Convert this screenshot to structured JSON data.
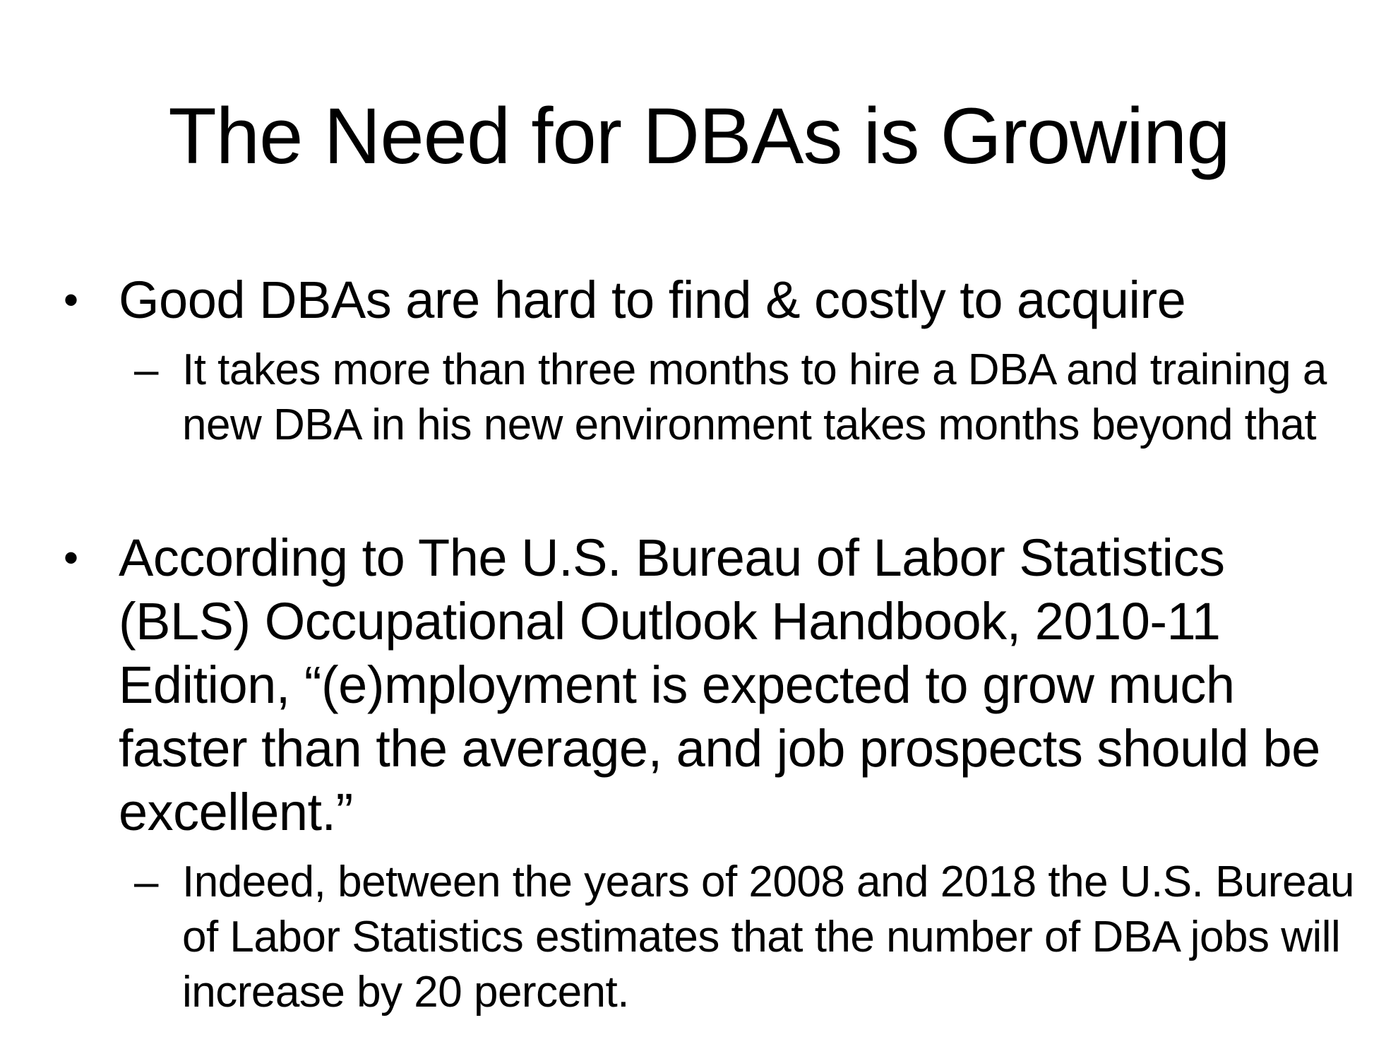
{
  "slide": {
    "title": "The Need for DBAs is Growing",
    "bullets": [
      {
        "marker": "•",
        "text": "Good DBAs are hard to find & costly to acquire",
        "sub": {
          "marker": "–",
          "text": "It takes more than three months to hire a DBA and training a new DBA in his new environment takes months beyond that"
        }
      },
      {
        "marker": "•",
        "text": "According to The U.S. Bureau of Labor Statistics (BLS) Occupational Outlook Handbook, 2010-11 Edition, “(e)mployment is expected to grow much faster than the average, and job prospects should be excellent.”",
        "sub": {
          "marker": "–",
          "text": "Indeed, between the years of 2008 and 2018 the U.S. Bureau of Labor Statistics estimates that the number of DBA jobs will increase by 20 percent."
        }
      }
    ]
  }
}
